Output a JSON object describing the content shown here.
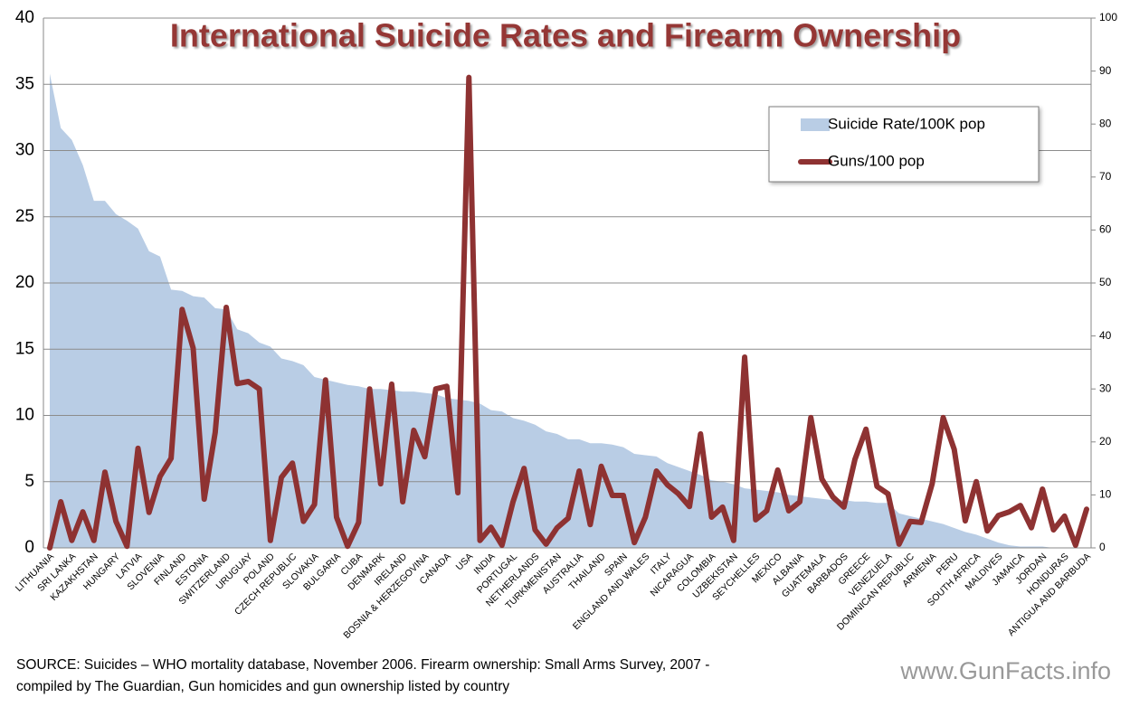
{
  "chart_data": {
    "type": "combo",
    "title": "International Suicide Rates and Firearm Ownership",
    "categories": [
      "LITHUANIA",
      null,
      "SRI LANKA",
      null,
      "KAZAKHSTAN",
      null,
      "HUNGARY",
      null,
      "LATVIA",
      null,
      "SLOVENIA",
      null,
      "FINLAND",
      null,
      "ESTONIA",
      null,
      "SWITZERLAND",
      null,
      "URUGUAY",
      null,
      "POLAND",
      null,
      "CZECH REPUBLIC",
      null,
      "SLOVAKIA",
      null,
      "BULGARIA",
      null,
      "CUBA",
      null,
      "DENMARK",
      null,
      "IRELAND",
      null,
      "BOSNIA & HERZEGOVINA",
      null,
      "CANADA",
      null,
      "USA",
      null,
      "INDIA",
      null,
      "PORTUGAL",
      null,
      "NETHERLANDS",
      null,
      "TURKMENISTAN",
      null,
      "AUSTRALIA",
      null,
      "THAILAND",
      null,
      "SPAIN",
      null,
      "ENGLAND AND WALES",
      null,
      "ITALY",
      null,
      "NICARAGUA",
      null,
      "COLOMBIA",
      null,
      "UZBEKISTAN",
      null,
      "SEYCHELLES",
      null,
      "MEXICO",
      null,
      "ALBANIA",
      null,
      "GUATEMALA",
      null,
      "BARBADOS",
      null,
      "GREECE",
      null,
      "VENEZUELA",
      null,
      "DOMINICAN REPUBLIC",
      null,
      "ARMENIA",
      null,
      "PERU",
      null,
      "SOUTH AFRICA",
      null,
      "MALDIVES",
      null,
      "JAMAICA",
      null,
      "JORDAN",
      null,
      "HONDURAS",
      null,
      "ANTIGUA AND BARBUDA"
    ],
    "series": [
      {
        "name": "Suicide Rate/100K pop",
        "color": "#b9cde5",
        "type": "area",
        "values": [
          35.8,
          31.7,
          30.8,
          28.9,
          26.2,
          26.2,
          25.2,
          24.7,
          24.1,
          22.4,
          22,
          19.5,
          19.4,
          19,
          18.9,
          18.1,
          18,
          16.5,
          16.2,
          15.5,
          15.2,
          14.3,
          14.1,
          13.8,
          12.9,
          12.7,
          12.5,
          12.3,
          12.2,
          12,
          12,
          11.9,
          11.8,
          11.8,
          11.7,
          11.6,
          11.3,
          11.2,
          11.1,
          10.9,
          10.4,
          10.3,
          9.8,
          9.6,
          9.3,
          8.8,
          8.6,
          8.2,
          8.2,
          7.9,
          7.9,
          7.8,
          7.6,
          7.1,
          7,
          6.9,
          6.4,
          6.1,
          5.8,
          5.5,
          5.1,
          5,
          4.8,
          4.5,
          4.4,
          4.3,
          4.2,
          4,
          3.9,
          3.8,
          3.7,
          3.6,
          3.6,
          3.5,
          3.5,
          3.4,
          3.4,
          2.6,
          2.4,
          2.2,
          2,
          1.8,
          1.5,
          1.2,
          1,
          0.7,
          0.4,
          0.2,
          0.1,
          0.1,
          0.1,
          0,
          0,
          0,
          0
        ]
      },
      {
        "name": "Guns/100 pop",
        "color": "#8e3232",
        "type": "line",
        "axis": "y2",
        "values": [
          0,
          8.7,
          1.4,
          6.8,
          1.4,
          14.3,
          5,
          0.3,
          18.8,
          6.7,
          13.5,
          16.9,
          45,
          37.7,
          9.2,
          21.8,
          45.4,
          31,
          31.4,
          30,
          1.4,
          13.3,
          16,
          5,
          8.2,
          31.7,
          5.8,
          0.3,
          4.8,
          30,
          12.1,
          30.9,
          8.7,
          22.2,
          17.2,
          30,
          30.5,
          10.4,
          88.8,
          1.4,
          3.9,
          0.5,
          8.7,
          15,
          3.4,
          0.7,
          3.8,
          5.6,
          14.5,
          4.4,
          15.4,
          9.9,
          9.9,
          1,
          5.8,
          14.5,
          11.9,
          10.2,
          7.8,
          21.5,
          5.8,
          7.7,
          1.4,
          36,
          5.3,
          7,
          14.7,
          7,
          8.7,
          24.6,
          13,
          9.6,
          7.7,
          16.7,
          22.4,
          11.6,
          10.2,
          0.7,
          5,
          4.8,
          12.1,
          24.6,
          18.6,
          5.1,
          12.5,
          3.2,
          6.1,
          6.8,
          8,
          3.8,
          11.1,
          3.4,
          6,
          0.5,
          7.3
        ]
      }
    ],
    "ylim": [
      0,
      40
    ],
    "yticks": [
      0,
      5,
      10,
      15,
      20,
      25,
      30,
      35,
      40
    ],
    "y2lim": [
      0,
      100
    ],
    "y2ticks": [
      0,
      10,
      20,
      30,
      40,
      50,
      60,
      70,
      80,
      90,
      100
    ],
    "grid": true,
    "legend": "top-right",
    "source": [
      "SOURCE: Suicides – WHO mortality database, November 2006. Firearm ownership: Small Arms Survey, 2007 -",
      "compiled by The Guardian, Gun homicides and gun ownership listed by country"
    ],
    "watermark": "www.GunFacts.info"
  }
}
